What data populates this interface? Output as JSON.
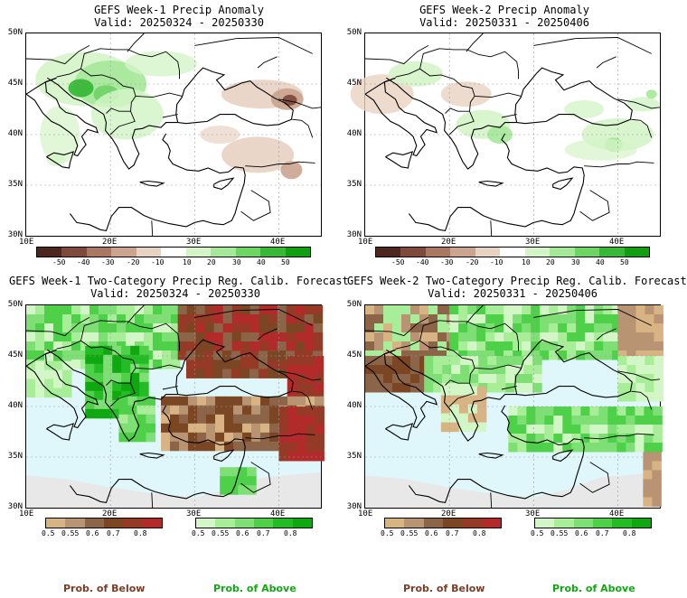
{
  "panels": [
    {
      "line1": "GEFS Week-1 Precip Anomaly",
      "line2": "Valid: 20250324 - 20250330"
    },
    {
      "line1": "GEFS Week-2 Precip Anomaly",
      "line2": "Valid: 20250331 - 20250406"
    },
    {
      "line1": "GEFS Week-1 Two-Category Precip Reg. Calib. Forecast",
      "line2": "Valid: 20250324 - 20250330"
    },
    {
      "line1": "GEFS Week-2 Two-Category Precip Reg. Calib. Forecast",
      "line2": "Valid: 20250331 - 20250406"
    }
  ],
  "axes": {
    "lat_labels": [
      "50N",
      "45N",
      "40N",
      "35N",
      "30N"
    ],
    "lon_labels": [
      "10E",
      "20E",
      "30E",
      "40E"
    ]
  },
  "anomaly_colorbar": {
    "ticks": [
      "-50",
      "-40",
      "-30",
      "-20",
      "-10",
      "10",
      "20",
      "30",
      "40",
      "50"
    ],
    "colors": [
      "#4e2620",
      "#7e4a3c",
      "#a87862",
      "#caa48e",
      "#e8d2c2",
      "#ffffff",
      "#d4f4c8",
      "#a6e89a",
      "#6ed464",
      "#38b838",
      "#129e12"
    ]
  },
  "prob_colorbar_below": {
    "ticks": [
      "0.5",
      "0.55",
      "0.6",
      "0.7",
      "0.8"
    ],
    "colors": [
      "#d8b484",
      "#b89472",
      "#8c6448",
      "#7a4624",
      "#943a26",
      "#b22a2a"
    ]
  },
  "prob_colorbar_above": {
    "ticks": [
      "0.5",
      "0.55",
      "0.6",
      "0.7",
      "0.8"
    ],
    "colors": [
      "#d2f6c6",
      "#a8ee98",
      "#7ee074",
      "#4ed048",
      "#24bc24",
      "#10a810"
    ]
  },
  "captions": {
    "below": "Prob. of Below",
    "above": "Prob. of Above"
  },
  "colors": {
    "below_caption": "#7a3c24",
    "above_caption": "#10a810",
    "sea_probability_maps": "#dff7fb",
    "no_forecast_land": "#e8e8e8"
  }
}
